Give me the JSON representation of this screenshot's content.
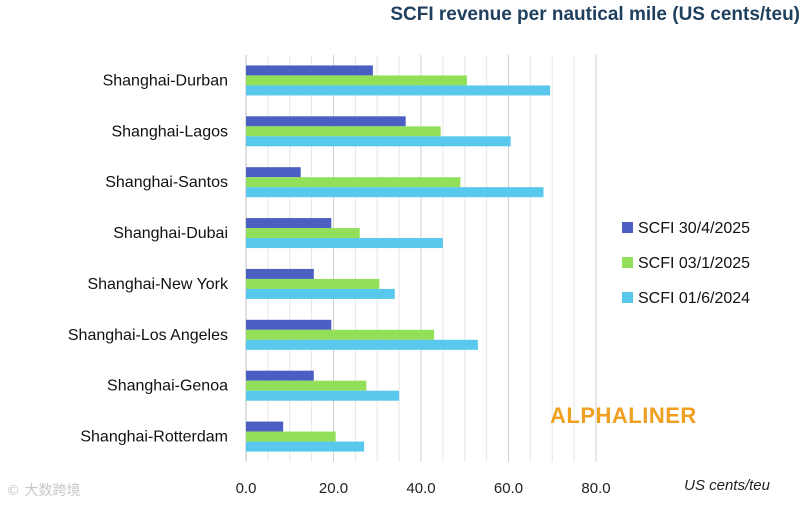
{
  "chart_data": {
    "type": "bar",
    "orientation": "horizontal",
    "title": "SCFI revenue per nautical mile (US cents/teu)",
    "xlabel": "US cents/teu",
    "ylabel": "",
    "xlim": [
      0,
      80
    ],
    "xticks": [
      "0.0",
      "20.0",
      "40.0",
      "60.0",
      "80.0"
    ],
    "grid": true,
    "legend_position": "right",
    "categories": [
      "Shanghai-Durban",
      "Shanghai-Lagos",
      "Shanghai-Santos",
      "Shanghai-Dubai",
      "Shanghai-New York",
      "Shanghai-Los Angeles",
      "Shanghai-Genoa",
      "Shanghai-Rotterdam"
    ],
    "series": [
      {
        "name": "SCFI 30/4/2025",
        "color": "#4a5fc1",
        "values": [
          29.0,
          36.5,
          12.5,
          19.5,
          15.5,
          19.5,
          15.5,
          8.5
        ]
      },
      {
        "name": "SCFI 03/1/2025",
        "color": "#92e05a",
        "values": [
          50.5,
          44.5,
          49.0,
          26.0,
          30.5,
          43.0,
          27.5,
          20.5
        ]
      },
      {
        "name": "SCFI 01/6/2024",
        "color": "#58c8ec",
        "values": [
          69.5,
          60.5,
          68.0,
          45.0,
          34.0,
          53.0,
          35.0,
          27.0
        ]
      }
    ]
  },
  "watermark": "ALPHALINER",
  "corner_mark": "© 大数跨境"
}
